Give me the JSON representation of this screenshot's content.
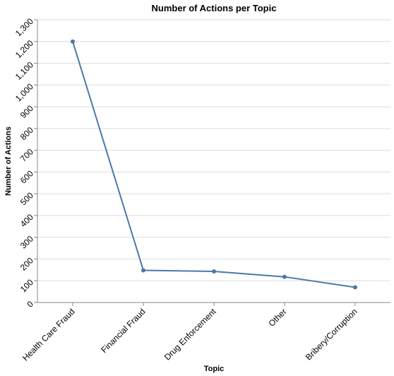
{
  "chart_data": {
    "type": "line",
    "title": "Number of Actions per Topic",
    "xlabel": "Topic",
    "ylabel": "Number of Actions",
    "categories": [
      "Health Care Fraud",
      "Financial Fraud",
      "Drug Enforcement",
      "Other",
      "Bribery/Corruption"
    ],
    "values": [
      1200,
      148,
      143,
      118,
      70
    ],
    "ylim": [
      0,
      1300
    ],
    "yticks": [
      0,
      100,
      200,
      300,
      400,
      500,
      600,
      700,
      800,
      900,
      1000,
      1100,
      1200,
      1300
    ],
    "ytick_labels": [
      "0",
      "100",
      "200",
      "300",
      "400",
      "500",
      "600",
      "700",
      "800",
      "900",
      "1,000",
      "1,100",
      "1,200",
      "1,300"
    ],
    "grid": true,
    "colors": {
      "line": "#4c78a8"
    }
  }
}
